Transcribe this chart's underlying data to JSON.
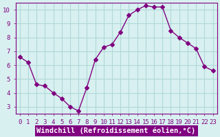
{
  "x": [
    0,
    1,
    2,
    3,
    4,
    5,
    6,
    7,
    8,
    9,
    10,
    11,
    12,
    13,
    14,
    15,
    16,
    17,
    18,
    19,
    20,
    21,
    22,
    23
  ],
  "y": [
    6.6,
    6.2,
    4.6,
    4.5,
    4.0,
    3.6,
    3.0,
    2.7,
    4.4,
    6.4,
    7.3,
    7.5,
    8.4,
    9.6,
    10.0,
    10.3,
    10.2,
    10.2,
    8.5,
    8.0,
    7.6,
    7.2,
    5.9,
    5.6
  ],
  "line_color": "#800080",
  "marker": "D",
  "marker_size": 3,
  "bg_color": "#d8f0f0",
  "grid_color": "#b0d8d8",
  "xlabel": "Windchill (Refroidissement éolien,°C)",
  "xlabel_color": "#ffffff",
  "xlabel_bg": "#800080",
  "xlim": [
    -0.5,
    23.5
  ],
  "ylim": [
    2.5,
    10.5
  ],
  "yticks": [
    3,
    4,
    5,
    6,
    7,
    8,
    9,
    10
  ],
  "xticks": [
    0,
    1,
    2,
    3,
    4,
    5,
    6,
    7,
    8,
    9,
    10,
    11,
    12,
    13,
    14,
    15,
    16,
    17,
    18,
    19,
    20,
    21,
    22,
    23
  ],
  "tick_label_color": "#800080",
  "tick_label_fontsize": 6.5,
  "xlabel_fontsize": 7.5,
  "spine_color": "#800080"
}
